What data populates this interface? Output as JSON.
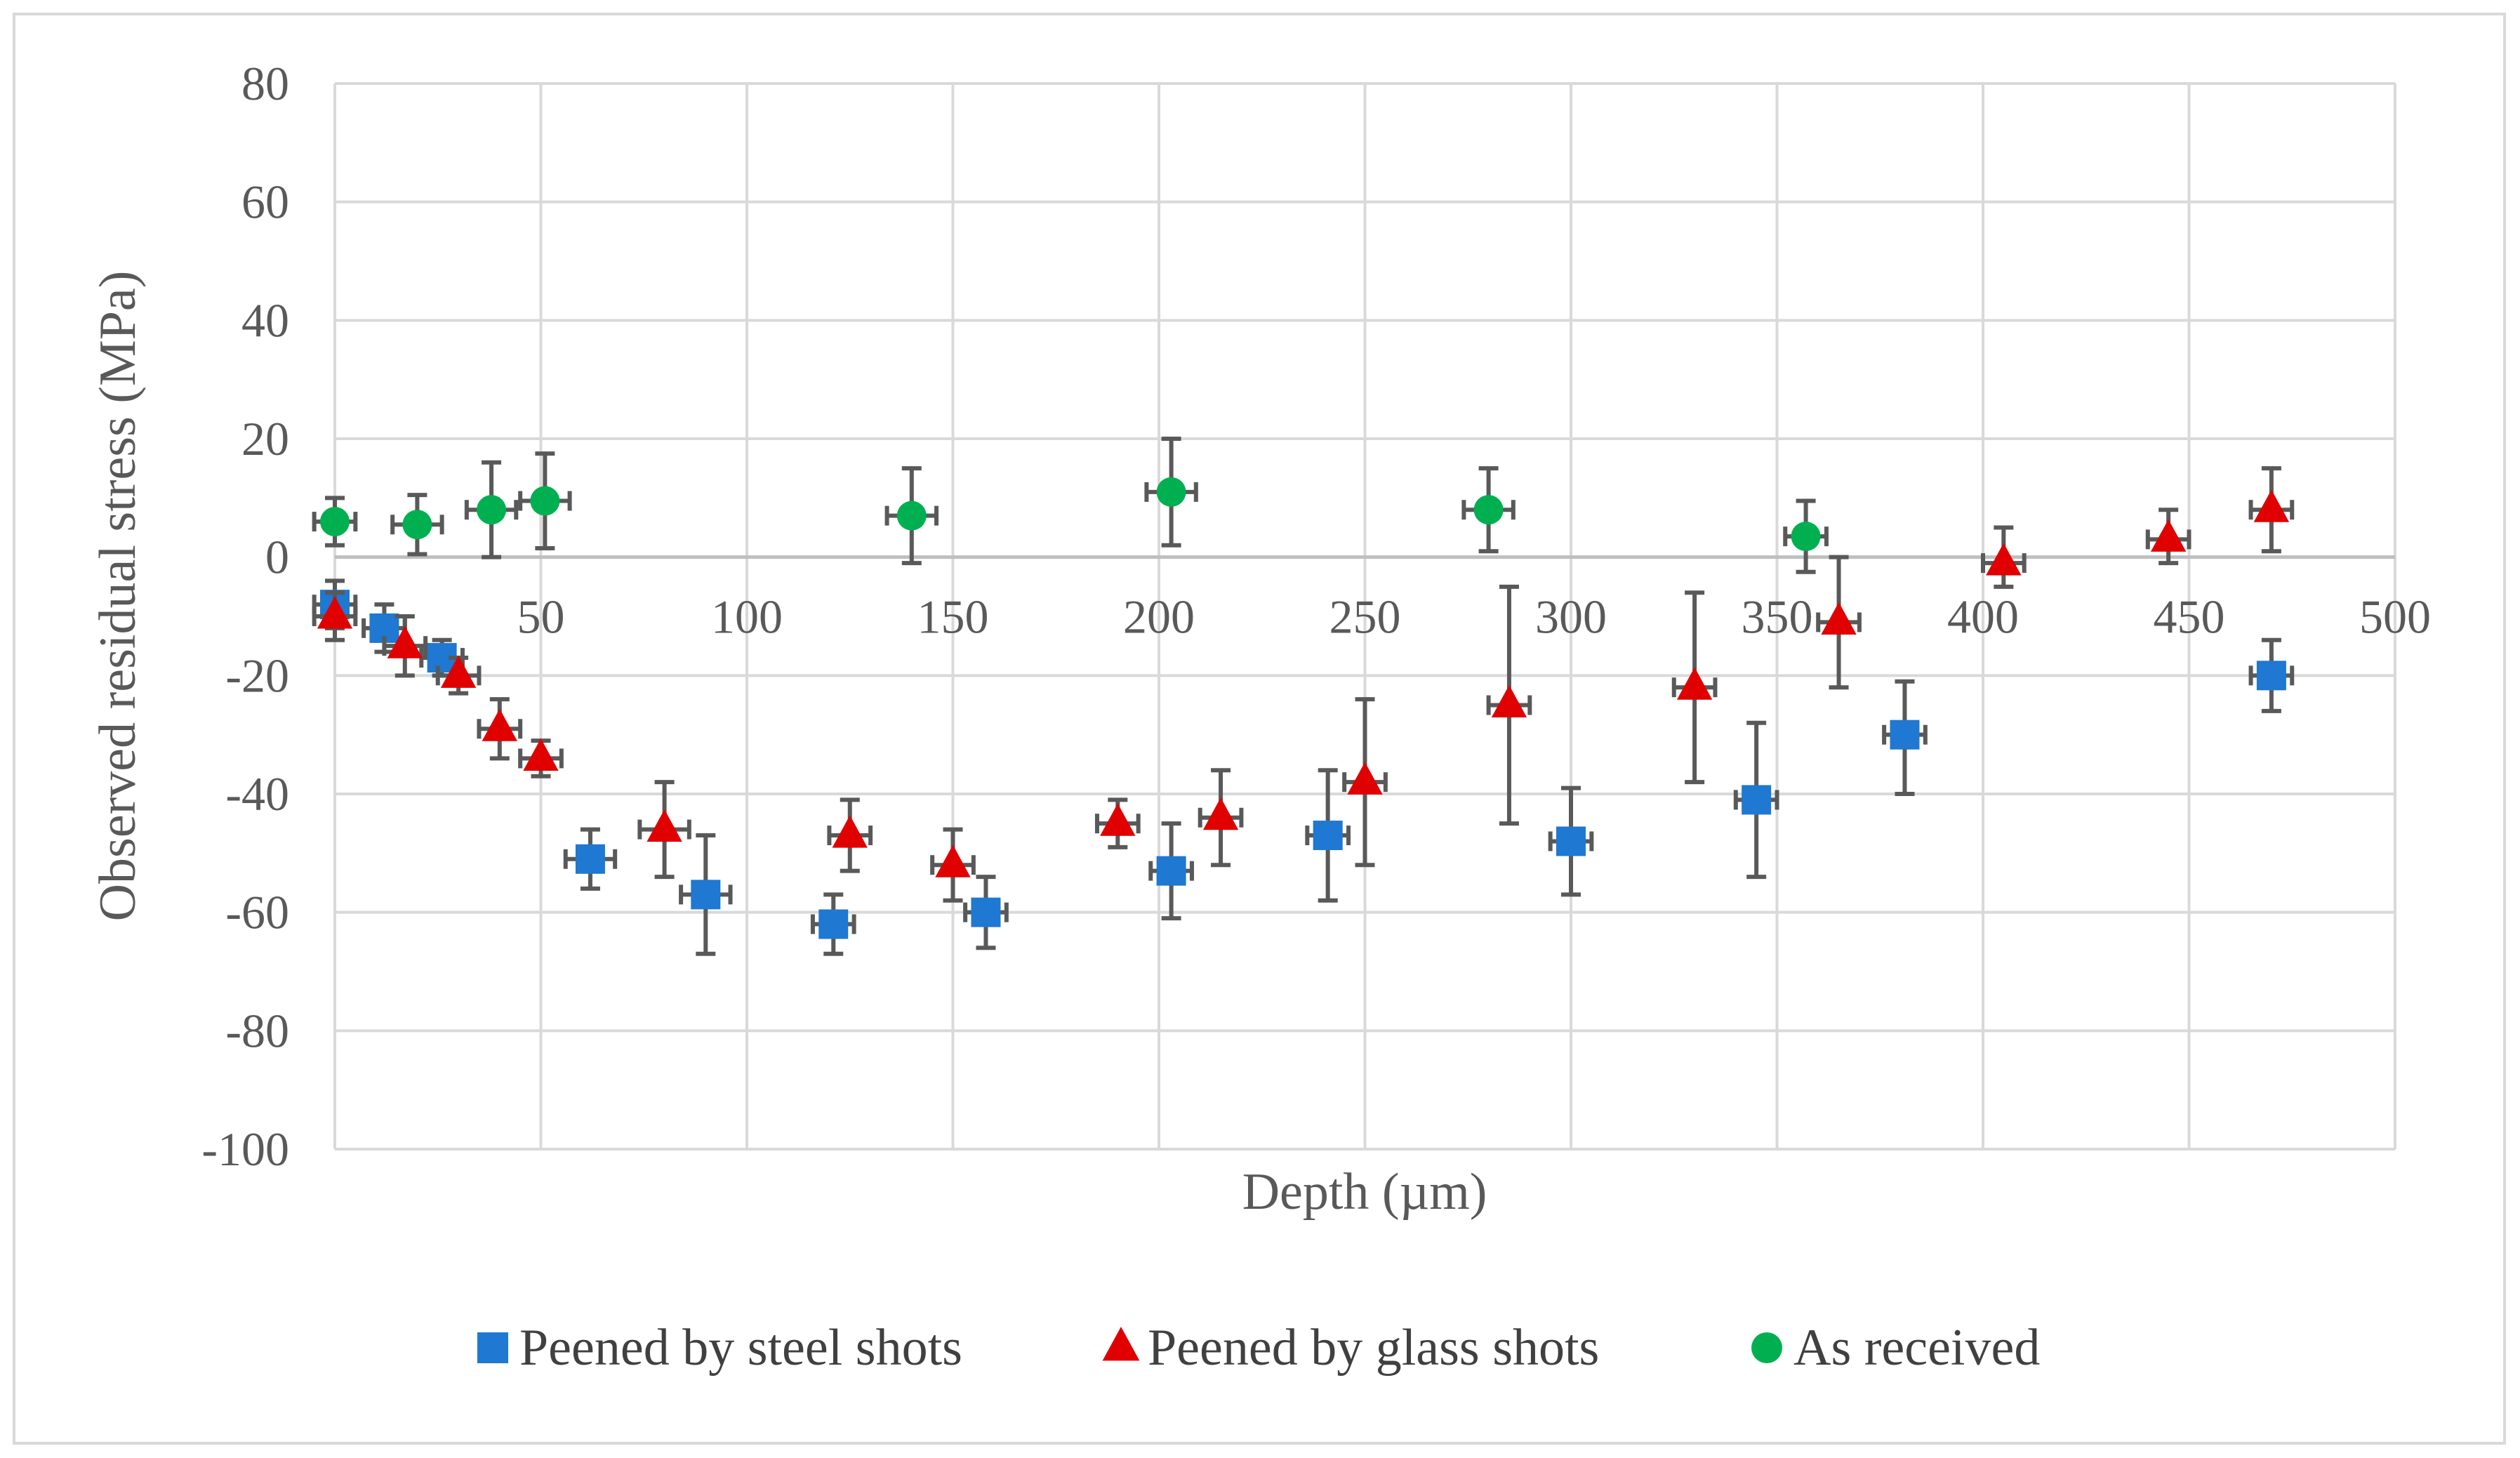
{
  "chart_data": {
    "type": "scatter",
    "xlabel": "Depth (µm)",
    "ylabel": "Observed residual stress (MPa)",
    "xlim": [
      0,
      500
    ],
    "ylim": [
      -100,
      80
    ],
    "xticks": [
      "50",
      "100",
      "150",
      "200",
      "250",
      "300",
      "350",
      "400",
      "450",
      "500"
    ],
    "yticks": [
      "80",
      "60",
      "40",
      "20",
      "0",
      "-20",
      "-40",
      "-60",
      "-80",
      "-100"
    ],
    "grid": true,
    "legend_position": "bottom",
    "series": [
      {
        "name": "Peened by steel shots",
        "marker": "square",
        "color": "#1f78d1",
        "points": [
          {
            "x": 0,
            "y": -8,
            "ylo": 4,
            "yhi": 4,
            "xerr": 5
          },
          {
            "x": 12,
            "y": -12,
            "ylo": 4,
            "yhi": 4,
            "xerr": 5
          },
          {
            "x": 26,
            "y": -17,
            "ylo": 3,
            "yhi": 3,
            "xerr": 5
          },
          {
            "x": 62,
            "y": -51,
            "ylo": 5,
            "yhi": 5,
            "xerr": 6
          },
          {
            "x": 90,
            "y": -57,
            "ylo": 10,
            "yhi": 10,
            "xerr": 6
          },
          {
            "x": 121,
            "y": -62,
            "ylo": 5,
            "yhi": 5,
            "xerr": 5
          },
          {
            "x": 158,
            "y": -60,
            "ylo": 6,
            "yhi": 6,
            "xerr": 5
          },
          {
            "x": 203,
            "y": -53,
            "ylo": 8,
            "yhi": 8,
            "xerr": 5
          },
          {
            "x": 241,
            "y": -47,
            "ylo": 11,
            "yhi": 11,
            "xerr": 5
          },
          {
            "x": 300,
            "y": -48,
            "ylo": 9,
            "yhi": 9,
            "xerr": 5
          },
          {
            "x": 345,
            "y": -41,
            "ylo": 13,
            "yhi": 13,
            "xerr": 5
          },
          {
            "x": 381,
            "y": -30,
            "ylo": 10,
            "yhi": 9,
            "xerr": 5
          },
          {
            "x": 470,
            "y": -20,
            "ylo": 6,
            "yhi": 6,
            "xerr": 5
          }
        ]
      },
      {
        "name": "Peened by glass shots",
        "marker": "triangle",
        "color": "#e00000",
        "points": [
          {
            "x": 0,
            "y": -10,
            "ylo": 4,
            "yhi": 4,
            "xerr": 5
          },
          {
            "x": 17,
            "y": -15,
            "ylo": 5,
            "yhi": 5,
            "xerr": 5
          },
          {
            "x": 30,
            "y": -20,
            "ylo": 3,
            "yhi": 3,
            "xerr": 5
          },
          {
            "x": 40,
            "y": -29,
            "ylo": 5,
            "yhi": 5,
            "xerr": 5
          },
          {
            "x": 50,
            "y": -34,
            "ylo": 3,
            "yhi": 3,
            "xerr": 5
          },
          {
            "x": 80,
            "y": -46,
            "ylo": 8,
            "yhi": 8,
            "xerr": 6
          },
          {
            "x": 125,
            "y": -47,
            "ylo": 6,
            "yhi": 6,
            "xerr": 5
          },
          {
            "x": 150,
            "y": -52,
            "ylo": 6,
            "yhi": 6,
            "xerr": 5
          },
          {
            "x": 190,
            "y": -45,
            "ylo": 4,
            "yhi": 4,
            "xerr": 5
          },
          {
            "x": 215,
            "y": -44,
            "ylo": 8,
            "yhi": 8,
            "xerr": 5
          },
          {
            "x": 250,
            "y": -38,
            "ylo": 14,
            "yhi": 14,
            "xerr": 5
          },
          {
            "x": 285,
            "y": -25,
            "ylo": 20,
            "yhi": 20,
            "xerr": 5
          },
          {
            "x": 330,
            "y": -22,
            "ylo": 16,
            "yhi": 16,
            "xerr": 5
          },
          {
            "x": 365,
            "y": -11,
            "ylo": 11,
            "yhi": 11,
            "xerr": 5
          },
          {
            "x": 405,
            "y": -1,
            "ylo": 4,
            "yhi": 6,
            "xerr": 5
          },
          {
            "x": 445,
            "y": 3,
            "ylo": 4,
            "yhi": 5,
            "xerr": 5
          },
          {
            "x": 470,
            "y": 8,
            "ylo": 7,
            "yhi": 7,
            "xerr": 5
          }
        ]
      },
      {
        "name": "As received",
        "marker": "circle",
        "color": "#00b050",
        "points": [
          {
            "x": 0,
            "y": 6,
            "ylo": 4,
            "yhi": 4,
            "xerr": 5
          },
          {
            "x": 20,
            "y": 5.5,
            "ylo": 5,
            "yhi": 5,
            "xerr": 6
          },
          {
            "x": 38,
            "y": 8,
            "ylo": 8,
            "yhi": 8,
            "xerr": 6
          },
          {
            "x": 51,
            "y": 9.5,
            "ylo": 8,
            "yhi": 8,
            "xerr": 6
          },
          {
            "x": 140,
            "y": 7,
            "ylo": 8,
            "yhi": 8,
            "xerr": 6
          },
          {
            "x": 203,
            "y": 11,
            "ylo": 9,
            "yhi": 9,
            "xerr": 6
          },
          {
            "x": 280,
            "y": 8,
            "ylo": 7,
            "yhi": 7,
            "xerr": 6
          },
          {
            "x": 357,
            "y": 3.5,
            "ylo": 6,
            "yhi": 6,
            "xerr": 5
          }
        ]
      }
    ]
  }
}
